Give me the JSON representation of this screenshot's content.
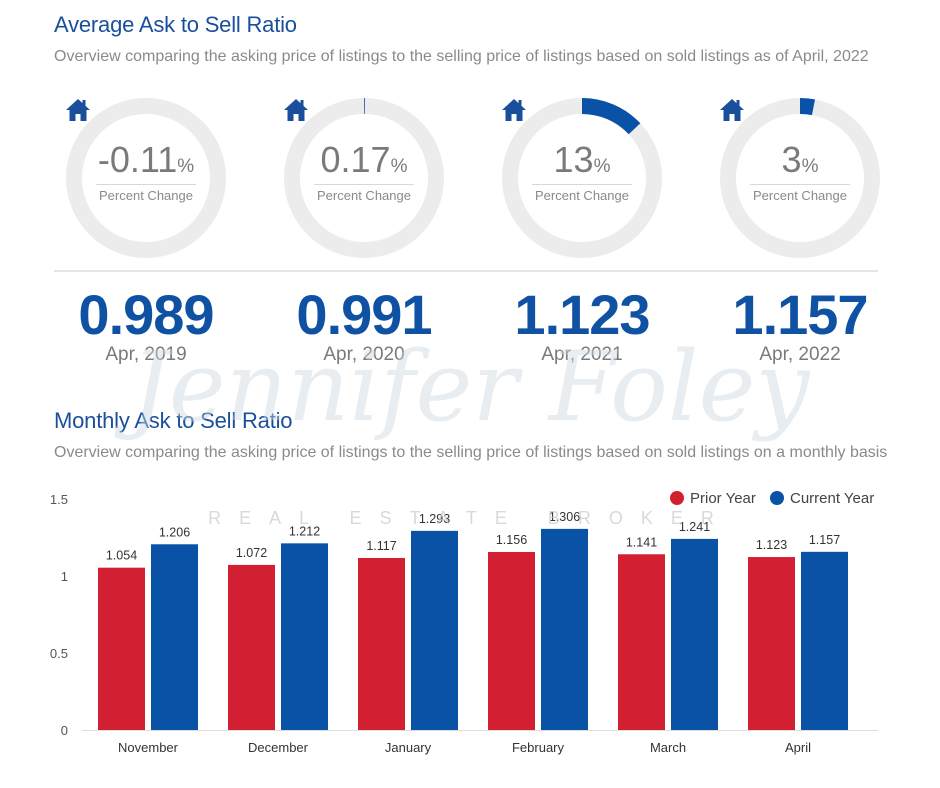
{
  "header": {
    "title": "Average Ask to Sell Ratio",
    "subtitle": "Overview comparing the asking price of listings to the selling price of listings based on sold listings as of April, 2022"
  },
  "donuts": [
    {
      "value": "-0.11",
      "unit": "%",
      "label": "Percent Change",
      "fill_percent": 0
    },
    {
      "value": "0.17",
      "unit": "%",
      "label": "Percent Change",
      "fill_percent": 0.17
    },
    {
      "value": "13",
      "unit": "%",
      "label": "Percent Change",
      "fill_percent": 13
    },
    {
      "value": "3",
      "unit": "%",
      "label": "Percent Change",
      "fill_percent": 3
    }
  ],
  "years": [
    {
      "value": "0.989",
      "label": "Apr, 2019"
    },
    {
      "value": "0.991",
      "label": "Apr, 2020"
    },
    {
      "value": "1.123",
      "label": "Apr, 2021"
    },
    {
      "value": "1.157",
      "label": "Apr, 2022"
    }
  ],
  "section2": {
    "title": "Monthly Ask to Sell Ratio",
    "subtitle": "Overview comparing the asking price of listings to the selling price of listings based on sold listings on a monthly basis"
  },
  "watermark": {
    "name": "Jennifer Foley",
    "tagline": "REAL ESTATE BROKER"
  },
  "colors": {
    "prior": "#d21f31",
    "current": "#0a52a5",
    "accent": "#1a4f9c",
    "ring": "#ececec"
  },
  "icons": {
    "house": "house-icon"
  },
  "chart_data": {
    "type": "bar",
    "categories": [
      "November",
      "December",
      "January",
      "February",
      "March",
      "April"
    ],
    "series": [
      {
        "name": "Prior Year",
        "values": [
          1.054,
          1.072,
          1.117,
          1.156,
          1.141,
          1.123
        ]
      },
      {
        "name": "Current Year",
        "values": [
          1.206,
          1.212,
          1.293,
          1.306,
          1.241,
          1.157
        ]
      }
    ],
    "ylim": [
      0,
      1.5
    ],
    "yticks": [
      "0",
      "0.5",
      "1",
      "1.5"
    ],
    "legend": "top-right",
    "grid": false
  }
}
